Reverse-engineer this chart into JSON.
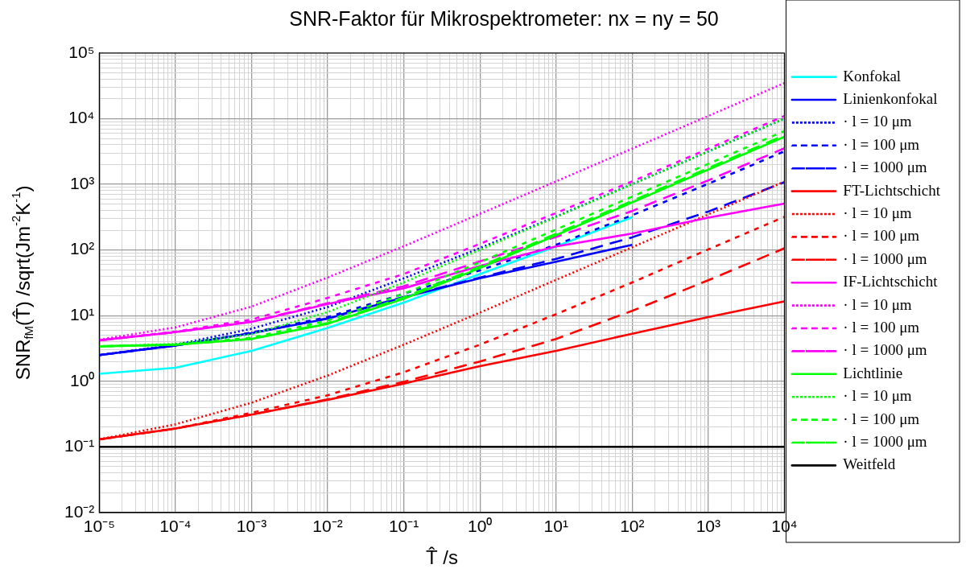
{
  "chart_data": {
    "type": "line",
    "title": "SNR-Faktor für Mikrospektrometer: nx = ny = 50",
    "xlabel": "T̂ /s",
    "ylabel": "SNR$_{fM}$(T̂) /sqrt(Jm$^{-2}$K$^{-1}$)",
    "log": "xy",
    "grid": true,
    "legend": "right",
    "marker": "none",
    "xlim": [
      1e-05,
      10000.0
    ],
    "ylim": [
      0.01,
      100000.0
    ],
    "xticks": [
      {
        "value": 1e-05,
        "label": "10⁻⁵"
      },
      {
        "value": 2e-05,
        "label": null
      },
      {
        "value": 3e-05,
        "label": null
      },
      {
        "value": 4e-05,
        "label": null
      },
      {
        "value": 5e-05,
        "label": null
      },
      {
        "value": 6e-05,
        "label": null
      },
      {
        "value": 7e-05,
        "label": null
      },
      {
        "value": 8e-05,
        "label": null
      },
      {
        "value": 9e-05,
        "label": null
      },
      {
        "value": 0.0001,
        "label": "10⁻⁴"
      },
      {
        "value": 0.0002,
        "label": null
      },
      {
        "value": 0.0003,
        "label": null
      },
      {
        "value": 0.0004,
        "label": null
      },
      {
        "value": 0.0005,
        "label": null
      },
      {
        "value": 0.0006,
        "label": null
      },
      {
        "value": 0.0007,
        "label": null
      },
      {
        "value": 0.0008,
        "label": null
      },
      {
        "value": 0.0009,
        "label": null
      },
      {
        "value": 0.001,
        "label": "10⁻³"
      },
      {
        "value": 0.002,
        "label": null
      },
      {
        "value": 0.003,
        "label": null
      },
      {
        "value": 0.004,
        "label": null
      },
      {
        "value": 0.005,
        "label": null
      },
      {
        "value": 0.006,
        "label": null
      },
      {
        "value": 0.007,
        "label": null
      },
      {
        "value": 0.008,
        "label": null
      },
      {
        "value": 0.009,
        "label": null
      },
      {
        "value": 0.01,
        "label": "10⁻²"
      },
      {
        "value": 0.02,
        "label": null
      },
      {
        "value": 0.03,
        "label": null
      },
      {
        "value": 0.04,
        "label": null
      },
      {
        "value": 0.05,
        "label": null
      },
      {
        "value": 0.06,
        "label": null
      },
      {
        "value": 0.07,
        "label": null
      },
      {
        "value": 0.08,
        "label": null
      },
      {
        "value": 0.09,
        "label": null
      },
      {
        "value": 0.1,
        "label": "10⁻¹"
      },
      {
        "value": 0.2,
        "label": null
      },
      {
        "value": 0.3,
        "label": null
      },
      {
        "value": 0.4,
        "label": null
      },
      {
        "value": 0.5,
        "label": null
      },
      {
        "value": 0.6,
        "label": null
      },
      {
        "value": 0.7,
        "label": null
      },
      {
        "value": 0.8,
        "label": null
      },
      {
        "value": 0.9,
        "label": null
      },
      {
        "value": 1,
        "label": "10⁰"
      },
      {
        "value": 2,
        "label": null
      },
      {
        "value": 3,
        "label": null
      },
      {
        "value": 4,
        "label": null
      },
      {
        "value": 5,
        "label": null
      },
      {
        "value": 6,
        "label": null
      },
      {
        "value": 7,
        "label": null
      },
      {
        "value": 8,
        "label": null
      },
      {
        "value": 9,
        "label": null
      },
      {
        "value": 10,
        "label": "10¹"
      },
      {
        "value": 20,
        "label": null
      },
      {
        "value": 30,
        "label": null
      },
      {
        "value": 40,
        "label": null
      },
      {
        "value": 50,
        "label": null
      },
      {
        "value": 60,
        "label": null
      },
      {
        "value": 70,
        "label": null
      },
      {
        "value": 80,
        "label": null
      },
      {
        "value": 90,
        "label": null
      },
      {
        "value": 100,
        "label": "10²"
      },
      {
        "value": 200,
        "label": null
      },
      {
        "value": 300,
        "label": null
      },
      {
        "value": 400,
        "label": null
      },
      {
        "value": 500,
        "label": null
      },
      {
        "value": 600,
        "label": null
      },
      {
        "value": 700,
        "label": null
      },
      {
        "value": 800,
        "label": null
      },
      {
        "value": 900,
        "label": null
      },
      {
        "value": 1000,
        "label": "10³"
      },
      {
        "value": 2000,
        "label": null
      },
      {
        "value": 3000,
        "label": null
      },
      {
        "value": 4000,
        "label": null
      },
      {
        "value": 5000,
        "label": null
      },
      {
        "value": 6000,
        "label": null
      },
      {
        "value": 7000,
        "label": null
      },
      {
        "value": 8000,
        "label": null
      },
      {
        "value": 9000,
        "label": null
      },
      {
        "value": 10000,
        "label": "10⁴"
      }
    ],
    "yticks": [
      {
        "value": 0.01,
        "label": "10⁻²"
      },
      {
        "value": 0.02,
        "label": null
      },
      {
        "value": 0.03,
        "label": null
      },
      {
        "value": 0.04,
        "label": null
      },
      {
        "value": 0.05,
        "label": null
      },
      {
        "value": 0.06,
        "label": null
      },
      {
        "value": 0.07,
        "label": null
      },
      {
        "value": 0.08,
        "label": null
      },
      {
        "value": 0.09,
        "label": null
      },
      {
        "value": 0.1,
        "label": "10⁻¹"
      },
      {
        "value": 0.2,
        "label": null
      },
      {
        "value": 0.3,
        "label": null
      },
      {
        "value": 0.4,
        "label": null
      },
      {
        "value": 0.5,
        "label": null
      },
      {
        "value": 0.6,
        "label": null
      },
      {
        "value": 0.7,
        "label": null
      },
      {
        "value": 0.8,
        "label": null
      },
      {
        "value": 0.9,
        "label": null
      },
      {
        "value": 1,
        "label": "10⁰"
      },
      {
        "value": 2,
        "label": null
      },
      {
        "value": 3,
        "label": null
      },
      {
        "value": 4,
        "label": null
      },
      {
        "value": 5,
        "label": null
      },
      {
        "value": 6,
        "label": null
      },
      {
        "value": 7,
        "label": null
      },
      {
        "value": 8,
        "label": null
      },
      {
        "value": 9,
        "label": null
      },
      {
        "value": 10,
        "label": "10¹"
      },
      {
        "value": 20,
        "label": null
      },
      {
        "value": 30,
        "label": null
      },
      {
        "value": 40,
        "label": null
      },
      {
        "value": 50,
        "label": null
      },
      {
        "value": 60,
        "label": null
      },
      {
        "value": 70,
        "label": null
      },
      {
        "value": 80,
        "label": null
      },
      {
        "value": 90,
        "label": null
      },
      {
        "value": 100,
        "label": "10²"
      },
      {
        "value": 200,
        "label": null
      },
      {
        "value": 300,
        "label": null
      },
      {
        "value": 400,
        "label": null
      },
      {
        "value": 500,
        "label": null
      },
      {
        "value": 600,
        "label": null
      },
      {
        "value": 700,
        "label": null
      },
      {
        "value": 800,
        "label": null
      },
      {
        "value": 900,
        "label": null
      },
      {
        "value": 1000,
        "label": "10³"
      },
      {
        "value": 2000,
        "label": null
      },
      {
        "value": 3000,
        "label": null
      },
      {
        "value": 4000,
        "label": null
      },
      {
        "value": 5000,
        "label": null
      },
      {
        "value": 6000,
        "label": null
      },
      {
        "value": 7000,
        "label": null
      },
      {
        "value": 8000,
        "label": null
      },
      {
        "value": 9000,
        "label": null
      },
      {
        "value": 10000,
        "label": "10⁴"
      },
      {
        "value": 20000,
        "label": null
      },
      {
        "value": 30000,
        "label": null
      },
      {
        "value": 40000,
        "label": null
      },
      {
        "value": 50000,
        "label": null
      },
      {
        "value": 60000,
        "label": null
      },
      {
        "value": 70000,
        "label": null
      },
      {
        "value": 80000,
        "label": null
      },
      {
        "value": 90000,
        "label": null
      },
      {
        "value": 100000,
        "label": "10⁵"
      }
    ],
    "x": [
      1e-05,
      0.0001,
      0.001,
      0.01,
      0.1,
      1,
      10,
      100,
      1000,
      10000
    ],
    "series": [
      {
        "name": "Konfokal",
        "color": "#00ffff",
        "line_style": "solid",
        "values": [
          1.3,
          1.6,
          2.9,
          6.5,
          15.8,
          43,
          113,
          315,
          null,
          null
        ]
      },
      {
        "name": "Linienkonfokal",
        "color": "#0000ff",
        "line_style": "solid",
        "values": [
          2.5,
          3.5,
          5.4,
          9,
          19,
          37,
          66,
          120,
          null,
          null
        ]
      },
      {
        "name": "· l = 10 μm",
        "color": "#0000ff",
        "line_style": "dotted",
        "values": [
          2.5,
          3.6,
          6.3,
          13.5,
          37,
          107,
          323,
          1007,
          3170,
          10000
        ]
      },
      {
        "name": "· l = 100 μm",
        "color": "#0000ff",
        "line_style": "dashed",
        "values": [
          2.5,
          3.5,
          5.5,
          9.5,
          21.5,
          49,
          120,
          338,
          1020,
          3190
        ]
      },
      {
        "name": "· l = 1000 μm",
        "color": "#0000ff",
        "line_style": "longdashed",
        "values": [
          2.5,
          3.5,
          5.4,
          9.1,
          19.3,
          38,
          73,
          156,
          385,
          1080
        ]
      },
      {
        "name": "FT-Lichtschicht",
        "color": "#ff0000",
        "line_style": "solid",
        "values": [
          0.13,
          0.19,
          0.31,
          0.52,
          0.92,
          1.7,
          2.9,
          5.3,
          9.5,
          16.5
        ]
      },
      {
        "name": "· l = 10 μm",
        "color": "#ff0000",
        "line_style": "dotted",
        "values": [
          0.13,
          0.22,
          0.47,
          1.22,
          3.6,
          11.1,
          35,
          110,
          348,
          1100
        ]
      },
      {
        "name": "· l = 100 μm",
        "color": "#ff0000",
        "line_style": "dashed",
        "values": [
          0.13,
          0.19,
          0.33,
          0.61,
          1.37,
          3.6,
          10.5,
          32,
          102,
          320
        ]
      },
      {
        "name": "· l = 1000 μm",
        "color": "#ff0000",
        "line_style": "longdashed",
        "values": [
          0.13,
          0.19,
          0.31,
          0.53,
          0.98,
          2,
          4.4,
          11.8,
          34.5,
          106
        ]
      },
      {
        "name": "IF-Lichtschicht",
        "color": "#ff00ff",
        "line_style": "solid",
        "values": [
          4.2,
          5.6,
          8,
          15,
          26,
          57,
          113,
          178,
          310,
          510
        ]
      },
      {
        "name": "· l = 10 μm",
        "color": "#ff00ff",
        "line_style": "dotted",
        "values": [
          4.3,
          6.6,
          13.7,
          38,
          114,
          355,
          1110,
          3500,
          11000,
          35000
        ]
      },
      {
        "name": "· l = 100 μm",
        "color": "#ff00ff",
        "line_style": "dashed",
        "values": [
          4.2,
          5.7,
          8.7,
          18.6,
          43,
          124,
          366,
          1110,
          3490,
          11000
        ]
      },
      {
        "name": "· l = 1000 μm",
        "color": "#ff00ff",
        "line_style": "longdashed",
        "values": [
          4.2,
          5.6,
          8.1,
          15.4,
          28,
          67,
          158,
          393,
          1150,
          3540
        ]
      },
      {
        "name": "Lichtlinie",
        "color": "#00ff00",
        "line_style": "solid",
        "values": [
          3.4,
          3.6,
          4.4,
          7.5,
          18,
          53,
          168,
          530,
          1680,
          5300
        ]
      },
      {
        "name": "· l = 10 μm",
        "color": "#00ff00",
        "line_style": "dotted",
        "values": [
          3.4,
          3.7,
          5.2,
          11.3,
          32,
          100,
          317,
          1000,
          3170,
          10000
        ]
      },
      {
        "name": "· l = 100 μm",
        "color": "#00ff00",
        "line_style": "dashed",
        "values": [
          3.4,
          3.6,
          4.6,
          8.4,
          21.5,
          65,
          205,
          650,
          2050,
          6490
        ]
      },
      {
        "name": "· l = 1000 μm",
        "color": "#00ff00",
        "line_style": "longdashed",
        "values": [
          3.4,
          3.6,
          4.4,
          7.7,
          19,
          56,
          177,
          560,
          1770,
          5600
        ]
      },
      {
        "name": "Weitfeld",
        "color": "#000000",
        "line_style": "solid",
        "values": [
          0.1,
          0.1,
          0.1,
          0.1,
          0.1,
          0.1,
          0.1,
          0.1,
          0.1,
          0.1
        ]
      }
    ]
  }
}
